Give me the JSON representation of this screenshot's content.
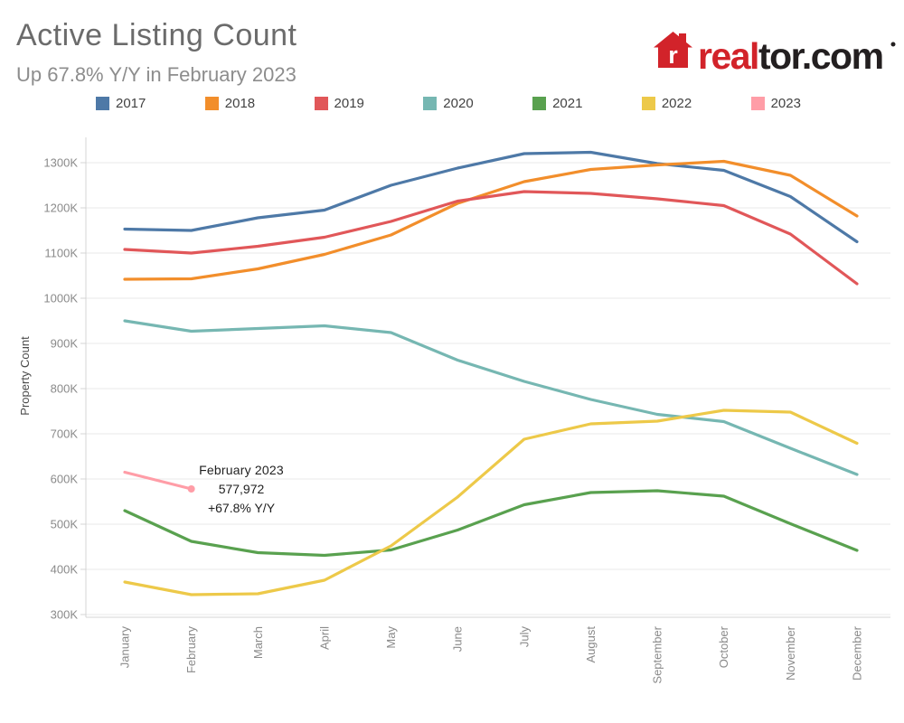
{
  "header": {
    "title": "Active Listing Count",
    "subtitle": "Up 67.8% Y/Y in February 2023"
  },
  "logo": {
    "house_icon": "realtor-house-icon",
    "brand_red_text": "real",
    "brand_black_text": "tor.com",
    "red": "#d2232a",
    "black": "#231f20"
  },
  "annotation": {
    "title": "February 2023",
    "value": "577,972",
    "change": "+67.8% Y/Y"
  },
  "chart_data": {
    "type": "line",
    "title": "Active Listing Count",
    "subtitle": "Up 67.8% Y/Y in February 2023",
    "xlabel": "",
    "ylabel": "Property Count",
    "unit": "K (thousands of properties)",
    "grid": true,
    "legend_position": "top",
    "ylim": [
      280,
      1360
    ],
    "y_ticks": [
      300,
      400,
      500,
      600,
      700,
      800,
      900,
      1000,
      1100,
      1200,
      1300
    ],
    "y_tick_suffix": "K",
    "categories": [
      "January",
      "February",
      "March",
      "April",
      "May",
      "June",
      "July",
      "August",
      "September",
      "October",
      "November",
      "December"
    ],
    "series": [
      {
        "name": "2017",
        "color": "#4e79a7",
        "values": [
          1153,
          1150,
          1178,
          1195,
          1250,
          1288,
          1320,
          1323,
          1298,
          1283,
          1225,
          1125
        ]
      },
      {
        "name": "2018",
        "color": "#f28e2b",
        "values": [
          1042,
          1043,
          1065,
          1097,
          1140,
          1210,
          1258,
          1285,
          1295,
          1303,
          1272,
          1182
        ]
      },
      {
        "name": "2019",
        "color": "#e15759",
        "values": [
          1108,
          1100,
          1115,
          1135,
          1170,
          1215,
          1236,
          1232,
          1220,
          1205,
          1142,
          1032
        ]
      },
      {
        "name": "2020",
        "color": "#76b7b2",
        "values": [
          950,
          927,
          933,
          939,
          924,
          863,
          816,
          776,
          743,
          727,
          668,
          610
        ]
      },
      {
        "name": "2021",
        "color": "#59a14f",
        "values": [
          530,
          462,
          437,
          431,
          443,
          487,
          543,
          570,
          574,
          562,
          501,
          442
        ]
      },
      {
        "name": "2022",
        "color": "#edc949",
        "values": [
          372,
          344,
          346,
          376,
          452,
          560,
          688,
          722,
          728,
          752,
          748,
          679
        ]
      },
      {
        "name": "2023",
        "color": "#ff9da7",
        "values": [
          615,
          578,
          null,
          null,
          null,
          null,
          null,
          null,
          null,
          null,
          null,
          null
        ]
      }
    ],
    "highlight_point": {
      "series": "2023",
      "category": "February",
      "value": 578
    }
  }
}
